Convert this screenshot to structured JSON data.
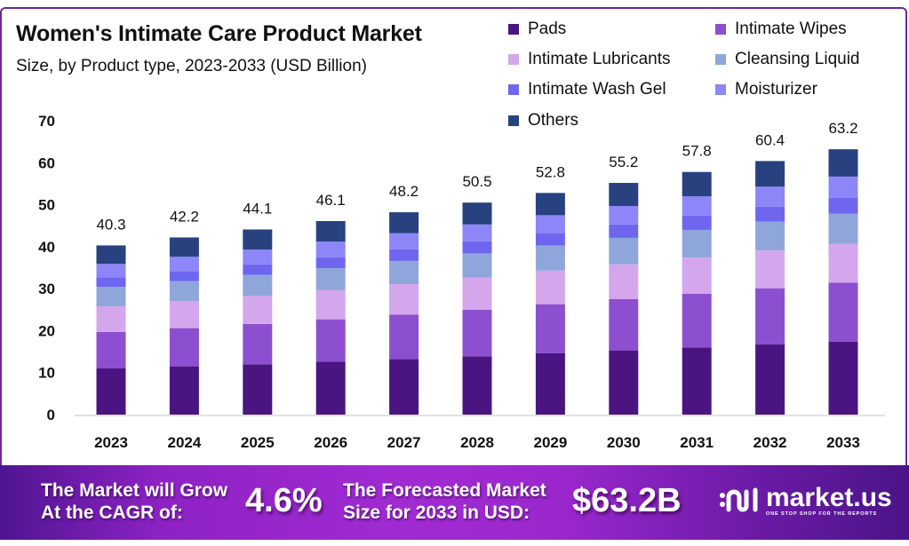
{
  "header": {
    "title": "Women's Intimate Care Product Market",
    "subtitle": "Size, by Product type, 2023-2033 (USD Billion)"
  },
  "legend": [
    {
      "label": "Pads",
      "color": "#4a1580"
    },
    {
      "label": "Intimate Wipes",
      "color": "#8b4fcf"
    },
    {
      "label": "Intimate Lubricants",
      "color": "#d4a6ec"
    },
    {
      "label": "Cleansing Liquid",
      "color": "#8fa6da"
    },
    {
      "label": "Intimate Wash Gel",
      "color": "#6f66f0"
    },
    {
      "label": "Moisturizer",
      "color": "#8c86f8"
    },
    {
      "label": "Others",
      "color": "#27427f"
    }
  ],
  "chart_data": {
    "type": "bar",
    "stacked": true,
    "title": "Women's Intimate Care Product Market",
    "subtitle": "Size, by Product type, 2023-2033 (USD Billion)",
    "xlabel": "",
    "ylabel": "",
    "ylim": [
      0,
      70
    ],
    "yticks": [
      0,
      10,
      20,
      30,
      40,
      50,
      60,
      70
    ],
    "grid": false,
    "legend_position": "top-right",
    "categories": [
      "2023",
      "2024",
      "2025",
      "2026",
      "2027",
      "2028",
      "2029",
      "2030",
      "2031",
      "2032",
      "2033"
    ],
    "totals": [
      40.3,
      42.2,
      44.1,
      46.1,
      48.2,
      50.5,
      52.8,
      55.2,
      57.8,
      60.4,
      63.2
    ],
    "total_labels": [
      "40.3",
      "42.2",
      "44.1",
      "46.1",
      "48.2",
      "50.5",
      "52.8",
      "55.2",
      "57.8",
      "60.4",
      "63.2"
    ],
    "series": [
      {
        "name": "Pads",
        "color": "#4a1580",
        "values": [
          11.0,
          11.5,
          12.0,
          12.6,
          13.2,
          13.9,
          14.6,
          15.3,
          16.0,
          16.7,
          17.4
        ]
      },
      {
        "name": "Intimate Wipes",
        "color": "#8b4fcf",
        "values": [
          8.7,
          9.1,
          9.6,
          10.1,
          10.6,
          11.1,
          11.7,
          12.2,
          12.8,
          13.4,
          14.0
        ]
      },
      {
        "name": "Intimate Lubricants",
        "color": "#d4a6ec",
        "values": [
          6.1,
          6.4,
          6.7,
          7.0,
          7.3,
          7.6,
          8.0,
          8.3,
          8.6,
          9.0,
          9.3
        ]
      },
      {
        "name": "Cleansing Liquid",
        "color": "#8fa6da",
        "values": [
          4.6,
          4.8,
          5.0,
          5.2,
          5.5,
          5.8,
          6.0,
          6.3,
          6.6,
          6.9,
          7.2
        ]
      },
      {
        "name": "Intimate Wash Gel",
        "color": "#6f66f0",
        "values": [
          2.3,
          2.4,
          2.5,
          2.6,
          2.8,
          2.9,
          3.0,
          3.2,
          3.4,
          3.5,
          3.7
        ]
      },
      {
        "name": "Moisturizer",
        "color": "#8c86f8",
        "values": [
          3.2,
          3.4,
          3.5,
          3.7,
          3.8,
          4.0,
          4.2,
          4.4,
          4.6,
          4.8,
          5.1
        ]
      },
      {
        "name": "Others",
        "color": "#27427f",
        "values": [
          4.4,
          4.6,
          4.8,
          4.9,
          5.0,
          5.2,
          5.3,
          5.5,
          5.8,
          6.1,
          6.5
        ]
      }
    ]
  },
  "banner": {
    "cagr_text_line1": "The Market will Grow",
    "cagr_text_line2": "At the CAGR of:",
    "cagr_value": "4.6%",
    "forecast_text_line1": "The Forecasted Market",
    "forecast_text_line2": "Size for 2033 in USD:",
    "forecast_value": "$63.2B",
    "brand_name": "market.us",
    "brand_tagline": "ONE STOP SHOP FOR THE REPORTS",
    "brand_icon": "market-us-logo-icon"
  }
}
